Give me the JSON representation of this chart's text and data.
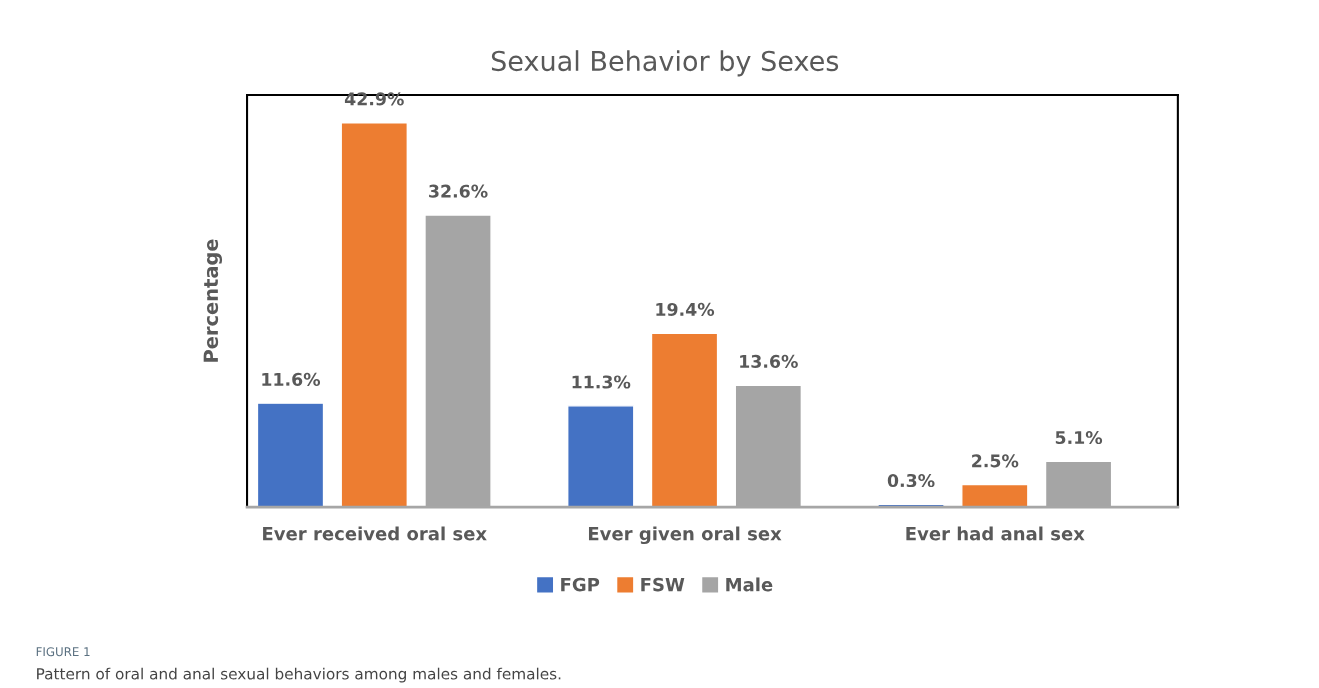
{
  "chart_data": {
    "type": "bar",
    "title": "Sexual Behavior by Sexes",
    "ylabel": "Percentage",
    "categories": [
      "Ever received oral sex",
      "Ever given oral sex",
      "Ever had anal sex"
    ],
    "series": [
      {
        "name": "FGP",
        "color": "#4472c4",
        "values": [
          11.6,
          11.3,
          0.3
        ],
        "value_labels": [
          "11.6%",
          "11.3%",
          "0.3%"
        ]
      },
      {
        "name": "FSW",
        "color": "#ed7d31",
        "values": [
          42.9,
          19.4,
          2.5
        ],
        "value_labels": [
          "42.9%",
          "19.4%",
          "2.5%"
        ]
      },
      {
        "name": "Male",
        "color": "#a5a5a5",
        "values": [
          32.6,
          13.6,
          5.1
        ],
        "value_labels": [
          "32.6%",
          "13.6%",
          "5.1%"
        ]
      }
    ],
    "ylim": [
      0,
      46
    ],
    "tick_labels": "x",
    "grid": false,
    "legend": "bottom",
    "annotations": [
      "FIGURE 1",
      "Pattern of oral and anal sexual behaviors among males and females."
    ]
  }
}
